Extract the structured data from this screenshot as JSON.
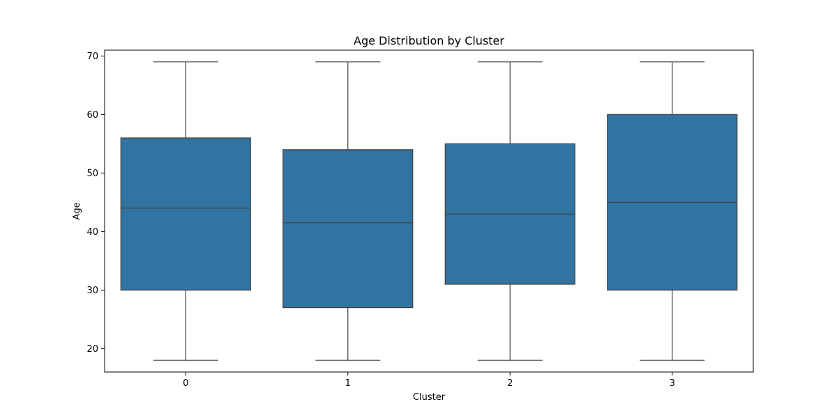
{
  "chart_data": {
    "type": "box",
    "title": "Age Distribution by Cluster",
    "xlabel": "Cluster",
    "ylabel": "Age",
    "categories": [
      "0",
      "1",
      "2",
      "3"
    ],
    "ylim": [
      16,
      71
    ],
    "yticks": [
      20,
      30,
      40,
      50,
      60,
      70
    ],
    "grid": false,
    "box_color": "#3274a1",
    "line_color": "#3f3f3f",
    "boxes": [
      {
        "category": "0",
        "whisker_low": 18,
        "q1": 30,
        "median": 44,
        "q3": 56,
        "whisker_high": 69
      },
      {
        "category": "1",
        "whisker_low": 18,
        "q1": 27,
        "median": 41.5,
        "q3": 54,
        "whisker_high": 69
      },
      {
        "category": "2",
        "whisker_low": 18,
        "q1": 31,
        "median": 43,
        "q3": 55,
        "whisker_high": 69
      },
      {
        "category": "3",
        "whisker_low": 18,
        "q1": 30,
        "median": 45,
        "q3": 60,
        "whisker_high": 69
      }
    ]
  }
}
